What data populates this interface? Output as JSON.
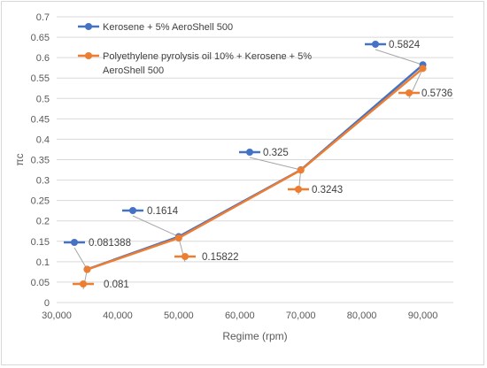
{
  "chart_data": {
    "type": "line",
    "title": "",
    "xlabel": "Regime (rpm)",
    "ylabel": "πc",
    "xlim": [
      30000,
      95000
    ],
    "ylim": [
      0,
      0.7
    ],
    "x_ticks": [
      "30,000",
      "40,000",
      "50,000",
      "60,000",
      "70,000",
      "80,000",
      "90,000"
    ],
    "y_ticks": [
      "0",
      "0.05",
      "0.1",
      "0.15",
      "0.2",
      "0.25",
      "0.3",
      "0.35",
      "0.4",
      "0.45",
      "0.5",
      "0.55",
      "0.6",
      "0.65",
      "0.7"
    ],
    "grid": "horizontal",
    "legend_position": "top-left",
    "series": [
      {
        "name": "Kerosene + 5% AeroShell 500",
        "color": "#4472c4",
        "x": [
          35000,
          50000,
          70000,
          90000
        ],
        "values": [
          0.081388,
          0.1614,
          0.325,
          0.5824
        ],
        "labels": [
          "0.081388",
          "0.1614",
          "0.325",
          "0.5824"
        ]
      },
      {
        "name": "Polyethylene pyrolysis oil 10% + Kerosene + 5% AeroShell 500",
        "name_lines": [
          "Polyethylene pyrolysis oil 10% + Kerosene + 5%",
          "AeroShell 500"
        ],
        "color": "#ed7d31",
        "x": [
          35000,
          50000,
          70000,
          90000
        ],
        "values": [
          0.081,
          0.15822,
          0.3243,
          0.5736
        ],
        "labels": [
          "0.081",
          "0.15822",
          "0.3243",
          "0.5736"
        ]
      }
    ]
  }
}
